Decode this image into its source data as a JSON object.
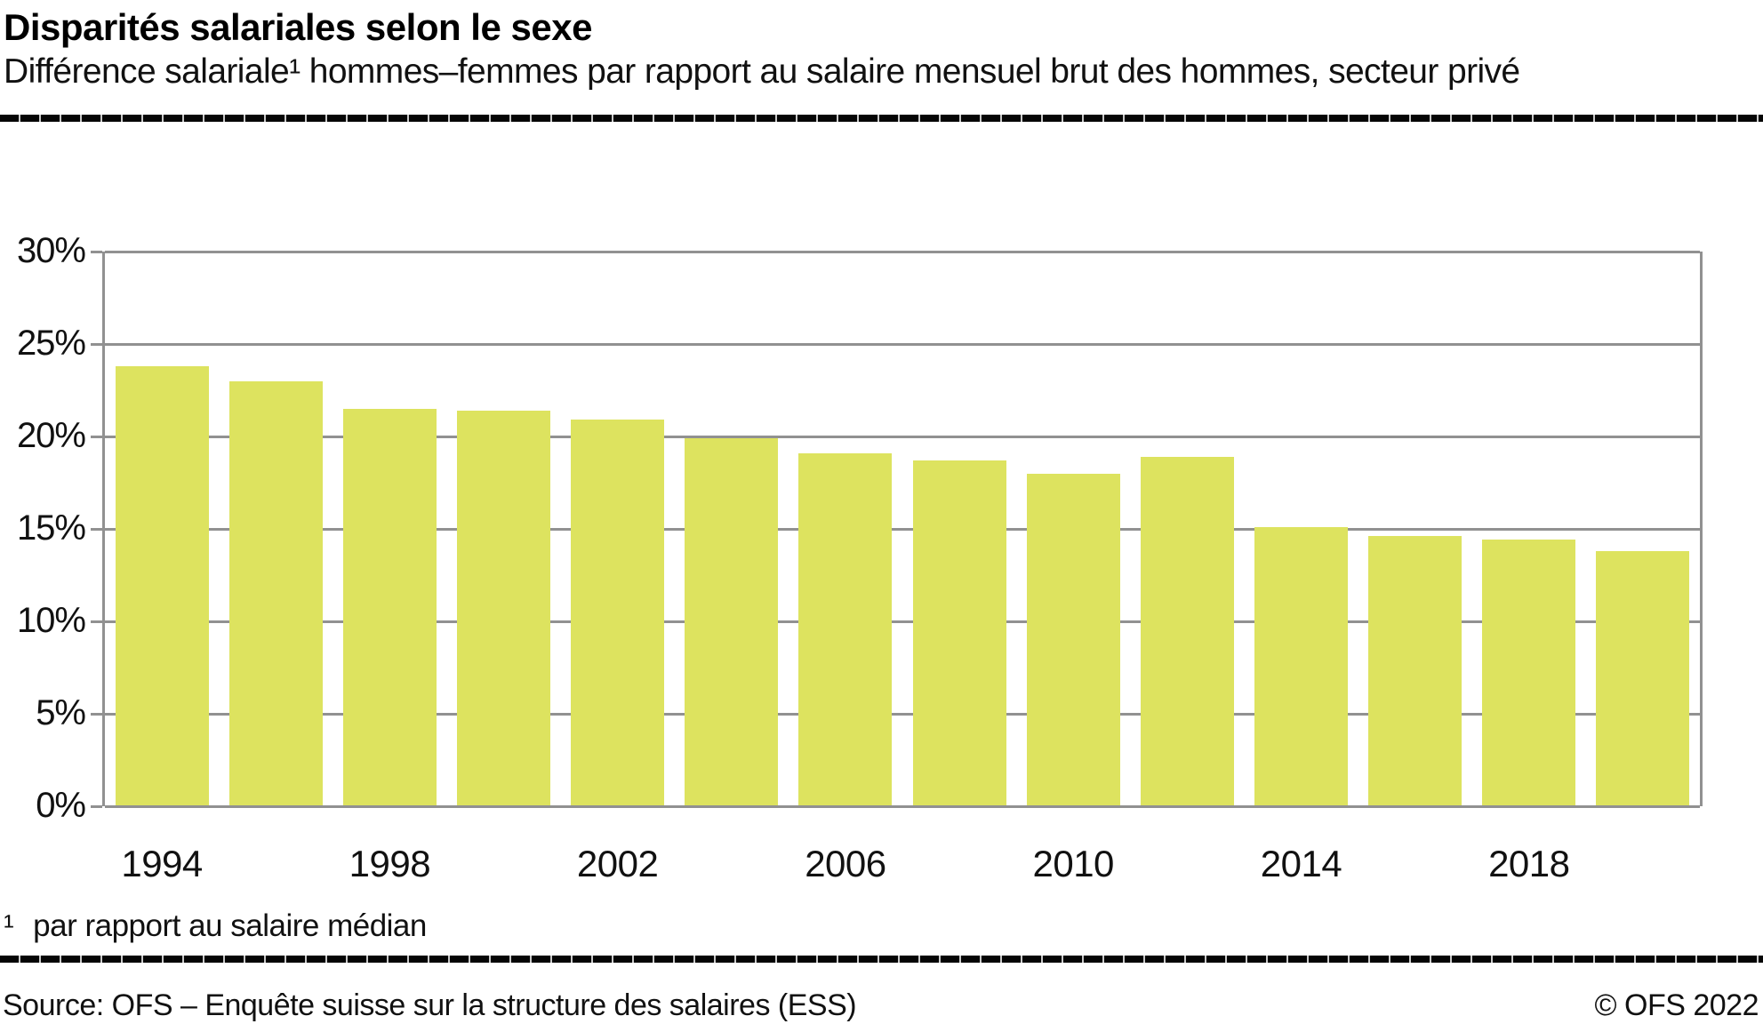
{
  "header": {
    "title": "Disparités salariales selon le sexe",
    "subtitle": "Différence salariale¹ hommes–femmes par rapport au salaire mensuel brut des hommes, secteur privé"
  },
  "chart_data": {
    "type": "bar",
    "title": "Disparités salariales selon le sexe",
    "categories": [
      "1994",
      "1996",
      "1998",
      "2000",
      "2002",
      "2004",
      "2006",
      "2008",
      "2010",
      "2012",
      "2014",
      "2016",
      "2018",
      "2020"
    ],
    "values": [
      23.8,
      23.0,
      21.5,
      21.4,
      20.9,
      19.9,
      19.1,
      18.7,
      18.0,
      18.9,
      15.1,
      14.6,
      14.4,
      13.8
    ],
    "xlabel": "",
    "ylabel": "",
    "ylim": [
      0,
      30
    ],
    "y_tick_labels": [
      "30%",
      "25%",
      "20%",
      "15%",
      "10%",
      "5%",
      "0%"
    ],
    "x_tick_labels": [
      "1994",
      "1998",
      "2002",
      "2006",
      "2010",
      "2014",
      "2018"
    ],
    "x_tick_every": 2,
    "grid": true,
    "legend": "none",
    "bar_color": "#dde35f",
    "grid_color": "#919191"
  },
  "footnote": {
    "marker": "¹",
    "text": "par rapport au salaire médian"
  },
  "footer": {
    "source": "Source: OFS – Enquête suisse sur la structure des salaires (ESS)",
    "copyright": "© OFS 2022"
  }
}
